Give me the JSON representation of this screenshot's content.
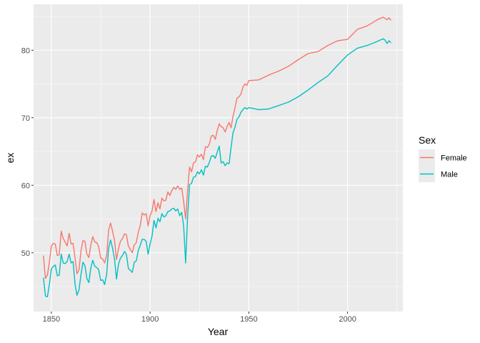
{
  "chart_data": {
    "type": "line",
    "xlabel": "Year",
    "ylabel": "ex",
    "xlim": [
      1841,
      2028
    ],
    "ylim": [
      41.3,
      86.8
    ],
    "x_ticks": [
      1850,
      1900,
      1950,
      2000
    ],
    "y_ticks": [
      50,
      60,
      70,
      80
    ],
    "grid": true,
    "legend": {
      "title": "Sex",
      "position": "right"
    },
    "series": [
      {
        "name": "Female",
        "color": "#F8766D",
        "x": [
          1846,
          1847,
          1848,
          1849,
          1850,
          1851,
          1852,
          1853,
          1854,
          1855,
          1856,
          1857,
          1858,
          1859,
          1860,
          1861,
          1862,
          1863,
          1864,
          1865,
          1866,
          1867,
          1868,
          1869,
          1870,
          1871,
          1872,
          1873,
          1874,
          1875,
          1876,
          1877,
          1878,
          1879,
          1880,
          1881,
          1882,
          1883,
          1884,
          1885,
          1886,
          1887,
          1888,
          1889,
          1890,
          1891,
          1892,
          1893,
          1894,
          1895,
          1896,
          1897,
          1898,
          1899,
          1900,
          1901,
          1902,
          1903,
          1904,
          1905,
          1906,
          1907,
          1908,
          1909,
          1910,
          1911,
          1912,
          1913,
          1914,
          1915,
          1916,
          1917,
          1918,
          1919,
          1920,
          1921,
          1922,
          1923,
          1924,
          1925,
          1926,
          1927,
          1928,
          1929,
          1930,
          1931,
          1932,
          1933,
          1934,
          1935,
          1936,
          1937,
          1938,
          1939,
          1940,
          1941,
          1942,
          1943,
          1944,
          1945,
          1946,
          1947,
          1948,
          1949,
          1950,
          1955,
          1960,
          1965,
          1970,
          1975,
          1980,
          1985,
          1990,
          1995,
          2000,
          2005,
          2010,
          2015,
          2018,
          2019,
          2020,
          2021,
          2022
        ],
        "values": [
          49.6,
          46.2,
          46.7,
          48.6,
          51.0,
          51.4,
          51.3,
          49.6,
          49.7,
          53.2,
          52.1,
          51.6,
          51.0,
          52.9,
          51.3,
          51.4,
          49.2,
          46.9,
          47.5,
          50.3,
          51.8,
          51.7,
          49.8,
          49.3,
          51.2,
          52.4,
          51.6,
          51.5,
          50.9,
          49.2,
          49.1,
          48.5,
          49.6,
          53.4,
          54.4,
          53.2,
          51.8,
          49.0,
          50.6,
          51.7,
          52.1,
          52.8,
          52.7,
          51.0,
          50.5,
          50.0,
          51.2,
          51.5,
          53.0,
          54.0,
          55.9,
          55.6,
          55.8,
          54.0,
          55.5,
          56.2,
          57.9,
          56.1,
          57.4,
          56.5,
          58.1,
          57.7,
          57.8,
          59.0,
          58.5,
          59.2,
          59.7,
          59.4,
          59.9,
          59.4,
          59.6,
          57.6,
          55.0,
          59.2,
          62.7,
          62.0,
          63.3,
          63.5,
          64.5,
          64.2,
          64.6,
          63.8,
          65.7,
          65.6,
          66.1,
          67.3,
          67.4,
          66.8,
          68.1,
          69.1,
          68.7,
          68.5,
          67.9,
          68.7,
          69.3,
          68.5,
          70.2,
          71.5,
          72.9,
          73.1,
          73.5,
          74.5,
          75.0,
          74.8,
          75.5,
          75.6,
          76.3,
          76.9,
          77.6,
          78.6,
          79.5,
          79.8,
          80.7,
          81.4,
          81.6,
          83.1,
          83.6,
          84.5,
          84.9,
          84.7,
          84.5,
          84.8,
          84.4
        ]
      },
      {
        "name": "Male",
        "color": "#00BFC4",
        "x": [
          1846,
          1847,
          1848,
          1849,
          1850,
          1851,
          1852,
          1853,
          1854,
          1855,
          1856,
          1857,
          1858,
          1859,
          1860,
          1861,
          1862,
          1863,
          1864,
          1865,
          1866,
          1867,
          1868,
          1869,
          1870,
          1871,
          1872,
          1873,
          1874,
          1875,
          1876,
          1877,
          1878,
          1879,
          1880,
          1881,
          1882,
          1883,
          1884,
          1885,
          1886,
          1887,
          1888,
          1889,
          1890,
          1891,
          1892,
          1893,
          1894,
          1895,
          1896,
          1897,
          1898,
          1899,
          1900,
          1901,
          1902,
          1903,
          1904,
          1905,
          1906,
          1907,
          1908,
          1909,
          1910,
          1911,
          1912,
          1913,
          1914,
          1915,
          1916,
          1917,
          1918,
          1919,
          1920,
          1921,
          1922,
          1923,
          1924,
          1925,
          1926,
          1927,
          1928,
          1929,
          1930,
          1931,
          1932,
          1933,
          1934,
          1935,
          1936,
          1937,
          1938,
          1939,
          1940,
          1941,
          1942,
          1943,
          1944,
          1945,
          1946,
          1947,
          1948,
          1949,
          1950,
          1955,
          1960,
          1965,
          1970,
          1975,
          1980,
          1985,
          1990,
          1995,
          2000,
          2005,
          2010,
          2015,
          2018,
          2019,
          2020,
          2021,
          2022
        ],
        "values": [
          46.3,
          43.6,
          43.5,
          45.3,
          47.6,
          48.0,
          48.2,
          46.6,
          46.7,
          49.8,
          48.5,
          48.4,
          48.7,
          49.8,
          48.5,
          48.7,
          45.3,
          43.7,
          44.5,
          46.8,
          48.6,
          48.1,
          46.2,
          45.6,
          47.8,
          48.9,
          48.0,
          47.8,
          47.5,
          45.9,
          46.0,
          45.3,
          46.8,
          50.7,
          51.9,
          50.7,
          49.0,
          46.1,
          48.3,
          49.2,
          49.6,
          50.2,
          49.8,
          47.7,
          47.4,
          47.1,
          48.6,
          48.8,
          50.3,
          51.1,
          52.0,
          52.0,
          51.7,
          49.8,
          51.3,
          52.5,
          54.8,
          53.7,
          55.1,
          54.6,
          55.8,
          55.3,
          55.5,
          56.1,
          56.2,
          56.5,
          56.6,
          56.2,
          56.5,
          55.5,
          56.0,
          54.0,
          48.5,
          55.3,
          60.1,
          60.3,
          61.2,
          61.3,
          62.0,
          61.7,
          62.3,
          61.5,
          62.8,
          62.7,
          63.4,
          64.3,
          64.4,
          64.0,
          64.9,
          65.8,
          63.3,
          63.5,
          62.9,
          63.3,
          63.2,
          65.6,
          67.8,
          68.6,
          69.8,
          70.1,
          70.8,
          71.2,
          71.5,
          71.3,
          71.5,
          71.2,
          71.3,
          71.8,
          72.3,
          73.1,
          74.1,
          75.2,
          76.2,
          77.8,
          79.3,
          80.3,
          80.7,
          81.3,
          81.7,
          81.5,
          81.0,
          81.4,
          81.1
        ]
      }
    ]
  }
}
